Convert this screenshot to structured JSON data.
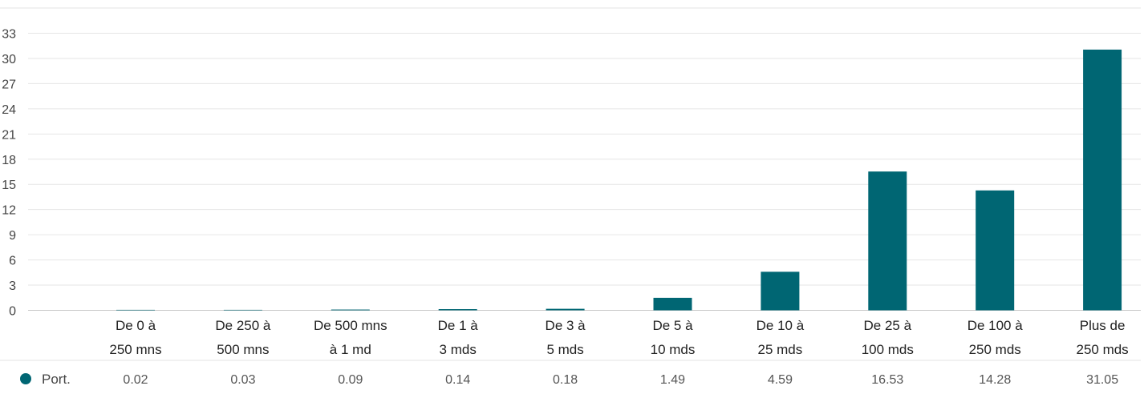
{
  "chart_data": {
    "type": "bar",
    "categories": [
      [
        "De 0 à",
        "250 mns"
      ],
      [
        "De 250 à",
        "500 mns"
      ],
      [
        "De 500 mns",
        "à 1 md"
      ],
      [
        "De 1 à",
        "3 mds"
      ],
      [
        "De 3 à",
        "5 mds"
      ],
      [
        "De 5 à",
        "10 mds"
      ],
      [
        "De 10 à",
        "25 mds"
      ],
      [
        "De 25 à",
        "100 mds"
      ],
      [
        "De 100 à",
        "250 mds"
      ],
      [
        "Plus de",
        "250 mds"
      ]
    ],
    "series": [
      {
        "name": "Port.",
        "color": "#006673",
        "values": [
          0.02,
          0.03,
          0.09,
          0.14,
          0.18,
          1.49,
          4.59,
          16.53,
          14.28,
          31.05
        ],
        "value_labels": [
          "0.02",
          "0.03",
          "0.09",
          "0.14",
          "0.18",
          "1.49",
          "4.59",
          "16.53",
          "14.28",
          "31.05"
        ]
      }
    ],
    "yticks": [
      "0",
      "3",
      "6",
      "9",
      "12",
      "15",
      "18",
      "21",
      "24",
      "27",
      "30",
      "33"
    ],
    "ylim": [
      0,
      33
    ],
    "grid": true,
    "legend_placement": "bottom-left data table"
  }
}
